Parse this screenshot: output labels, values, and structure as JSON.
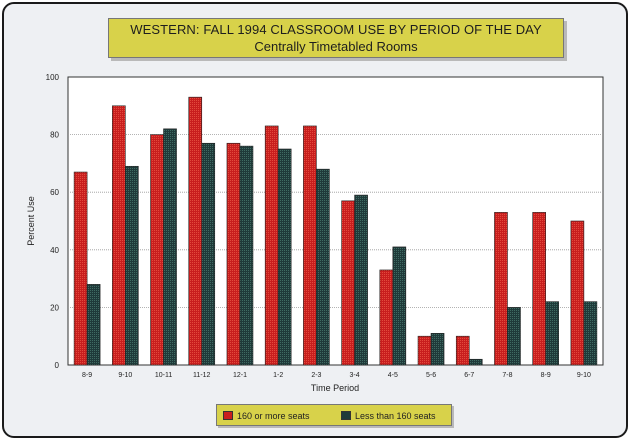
{
  "title": {
    "line1": "WESTERN: FALL 1994 CLASSROOM USE BY PERIOD OF THE DAY",
    "line2": "Centrally Timetabled Rooms"
  },
  "chart_data": {
    "type": "bar",
    "categories": [
      "8-9",
      "9-10",
      "10-11",
      "11-12",
      "12-1",
      "1-2",
      "2-3",
      "3-4",
      "4-5",
      "5-6",
      "6-7",
      "7-8",
      "8-9",
      "9-10"
    ],
    "series": [
      {
        "name": "160 or more seats",
        "color": "#c81e1e",
        "values": [
          67,
          90,
          80,
          93,
          77,
          83,
          83,
          57,
          33,
          10,
          10,
          53,
          53,
          50
        ]
      },
      {
        "name": "Less than 160 seats",
        "color": "#1f3a3a",
        "values": [
          28,
          69,
          82,
          77,
          76,
          75,
          68,
          59,
          41,
          11,
          2,
          20,
          22,
          22
        ]
      }
    ],
    "xlabel": "Time Period",
    "ylabel": "Percent Use",
    "ylim": [
      0,
      100
    ],
    "yticks": [
      "0",
      "20",
      "40",
      "60",
      "80",
      "100"
    ],
    "grid": true,
    "legend_position": "bottom"
  },
  "colors": {
    "plot_background": "#ffffff",
    "frame_background": "#eef0f3",
    "title_background": "#d8d24a"
  }
}
